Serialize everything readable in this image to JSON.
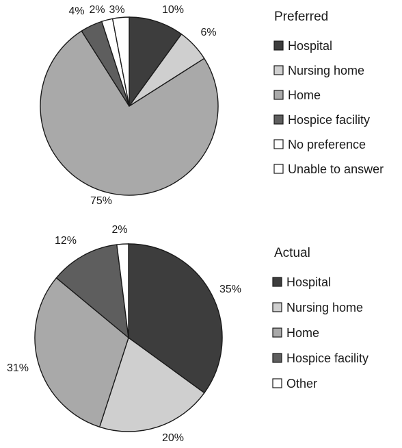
{
  "chart_data": [
    {
      "type": "pie",
      "legend_title": "Preferred",
      "legend_placement": "right",
      "slices": [
        {
          "label": "Hospital",
          "value": 10,
          "value_label": "10%",
          "color": "#3d3d3d"
        },
        {
          "label": "Nursing home",
          "value": 6,
          "value_label": "6%",
          "color": "#cfcfcf"
        },
        {
          "label": "Home",
          "value": 75,
          "value_label": "75%",
          "color": "#a9a9a9"
        },
        {
          "label": "Hospice facility",
          "value": 4,
          "value_label": "4%",
          "color": "#5e5e5e"
        },
        {
          "label": "No preference",
          "value": 2,
          "value_label": "2%",
          "color": "#ffffff"
        },
        {
          "label": "Unable to answer",
          "value": 3,
          "value_label": "3%",
          "color": "#ffffff"
        }
      ]
    },
    {
      "type": "pie",
      "legend_title": "Actual",
      "legend_placement": "right",
      "slices": [
        {
          "label": "Hospital",
          "value": 35,
          "value_label": "35%",
          "color": "#3d3d3d"
        },
        {
          "label": "Nursing home",
          "value": 20,
          "value_label": "20%",
          "color": "#cfcfcf"
        },
        {
          "label": "Home",
          "value": 31,
          "value_label": "31%",
          "color": "#a9a9a9"
        },
        {
          "label": "Hospice facility",
          "value": 12,
          "value_label": "12%",
          "color": "#5e5e5e"
        },
        {
          "label": "Other",
          "value": 2,
          "value_label": "2%",
          "color": "#ffffff"
        }
      ]
    }
  ]
}
